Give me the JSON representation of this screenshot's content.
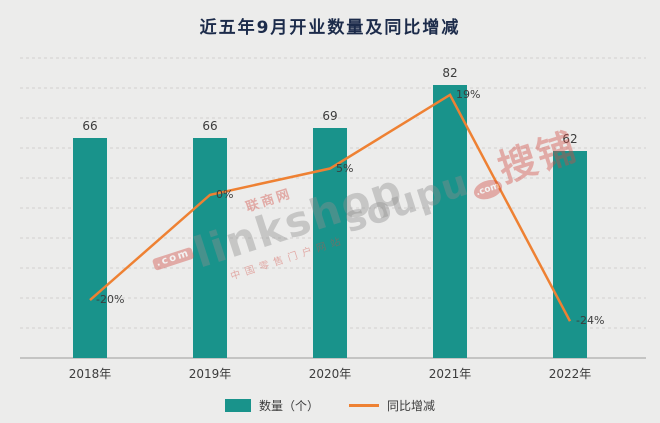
{
  "title": "近五年9月开业数量及同比增减",
  "chart_data": {
    "type": "bar",
    "categories": [
      "2018年",
      "2019年",
      "2020年",
      "2021年",
      "2022年"
    ],
    "series": [
      {
        "name": "数量（个）",
        "type": "bar",
        "values": [
          66,
          66,
          69,
          82,
          62
        ],
        "color": "#19938b"
      },
      {
        "name": "同比增减",
        "type": "line",
        "values": [
          -20,
          0,
          5,
          19,
          -24
        ],
        "labels": [
          "-20%",
          "0%",
          "5%",
          "19%",
          "-24%"
        ],
        "color": "#ee8133"
      }
    ],
    "ylim": [
      0,
      90
    ],
    "y2lim": [
      -31,
      26
    ],
    "grid": true,
    "legend_position": "bottom"
  },
  "legend": {
    "bar_label": "数量（个）",
    "line_label": "同比增减"
  },
  "watermarks": [
    {
      "top": "联商网",
      "badge": ".com",
      "text": "linkshop",
      "sub": "中国零售门户网站"
    },
    {
      "text": "soupu",
      "badge": ".com",
      "cn": "搜铺"
    }
  ],
  "colors": {
    "background": "#ececeb",
    "title": "#1c2b4a",
    "gridline": "#d2d0cf",
    "axis": "#9b9b9b",
    "bar": "#19938b",
    "line": "#ee8133",
    "watermark_red": "#d24a41"
  }
}
